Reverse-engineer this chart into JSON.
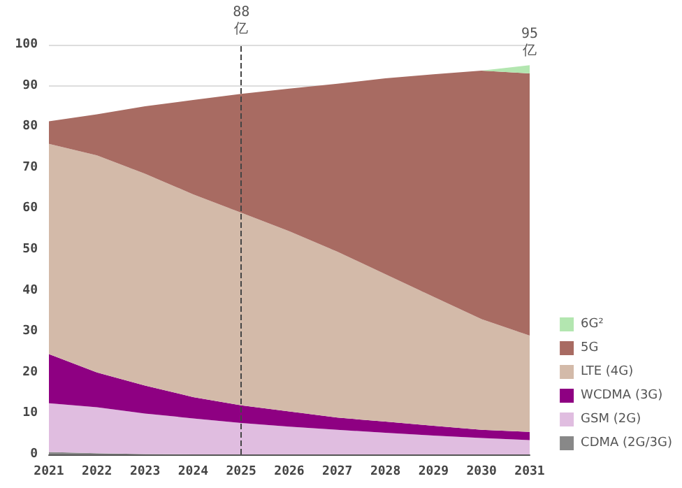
{
  "chart_data": {
    "type": "area",
    "stacked": true,
    "categories": [
      "2021",
      "2022",
      "2023",
      "2024",
      "2025",
      "2026",
      "2027",
      "2028",
      "2029",
      "2030",
      "2031"
    ],
    "series": [
      {
        "name": "CDMA (2G/3G)",
        "color": "#888888",
        "values": [
          0.6,
          0.3,
          0.1,
          0,
          0,
          0,
          0,
          0,
          0,
          0,
          0
        ]
      },
      {
        "name": "GSM (2G)",
        "color": "#e0bde0",
        "values": [
          11.9,
          11.2,
          9.9,
          8.8,
          7.7,
          6.8,
          6,
          5.3,
          4.6,
          4,
          3.5
        ]
      },
      {
        "name": "WCDMA (3G)",
        "color": "#8e0082",
        "values": [
          12,
          8.5,
          6.8,
          5.2,
          4.3,
          3.7,
          3,
          2.7,
          2.4,
          2,
          2
        ]
      },
      {
        "name": "LTE (4G)",
        "color": "#d3baa9",
        "values": [
          51.3,
          53,
          51.7,
          49.5,
          47,
          44,
          40.5,
          36,
          31.5,
          27,
          23.5
        ]
      },
      {
        "name": "5G",
        "color": "#a86b62",
        "values": [
          5.5,
          10,
          16.5,
          23,
          29,
          34.8,
          41,
          47.8,
          54.3,
          60.7,
          64
        ]
      },
      {
        "name": "6G²",
        "color": "#b3e6b0",
        "values": [
          0,
          0,
          0,
          0,
          0,
          0,
          0,
          0,
          0,
          0,
          2
        ]
      }
    ],
    "ylim": [
      0,
      100
    ],
    "yticks": [
      0,
      10,
      20,
      30,
      40,
      50,
      60,
      70,
      80,
      90,
      100
    ],
    "grid": "y",
    "legend": "bottom right",
    "ref_lines": [
      {
        "axis": "x",
        "value": "2025",
        "label": "88\n亿",
        "line_style": "dashed",
        "color": "#444444"
      }
    ],
    "annotations": [
      {
        "text": "95\n亿",
        "x": "2031",
        "y": 95
      }
    ]
  }
}
